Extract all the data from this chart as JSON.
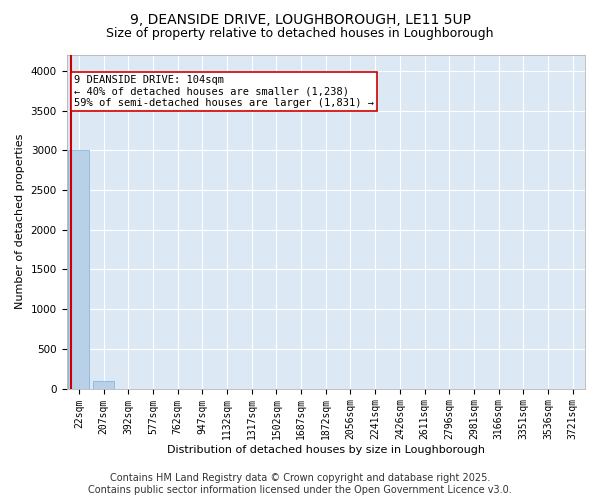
{
  "title1": "9, DEANSIDE DRIVE, LOUGHBOROUGH, LE11 5UP",
  "title2": "Size of property relative to detached houses in Loughborough",
  "xlabel": "Distribution of detached houses by size in Loughborough",
  "ylabel": "Number of detached properties",
  "categories": [
    "22sqm",
    "207sqm",
    "392sqm",
    "577sqm",
    "762sqm",
    "947sqm",
    "1132sqm",
    "1317sqm",
    "1502sqm",
    "1687sqm",
    "1872sqm",
    "2056sqm",
    "2241sqm",
    "2426sqm",
    "2611sqm",
    "2796sqm",
    "2981sqm",
    "3166sqm",
    "3351sqm",
    "3536sqm",
    "3721sqm"
  ],
  "values": [
    3000,
    100,
    0,
    0,
    0,
    0,
    0,
    0,
    0,
    0,
    0,
    0,
    0,
    0,
    0,
    0,
    0,
    0,
    0,
    0,
    0
  ],
  "bar_color": "#b8d0e8",
  "bar_edge_color": "#7aafd4",
  "vline_color": "#cc0000",
  "annotation_line1": "9 DEANSIDE DRIVE: 104sqm",
  "annotation_line2": "← 40% of detached houses are smaller (1,238)",
  "annotation_line3": "59% of semi-detached houses are larger (1,831) →",
  "ylim": [
    0,
    4200
  ],
  "yticks": [
    0,
    500,
    1000,
    1500,
    2000,
    2500,
    3000,
    3500,
    4000
  ],
  "bg_color": "#dce9f5",
  "footer1": "Contains HM Land Registry data © Crown copyright and database right 2025.",
  "footer2": "Contains public sector information licensed under the Open Government Licence v3.0.",
  "title_fontsize": 10,
  "subtitle_fontsize": 9,
  "footer_fontsize": 7,
  "annotation_fontsize": 7.5,
  "ylabel_fontsize": 8,
  "xlabel_fontsize": 8,
  "tick_fontsize": 7
}
